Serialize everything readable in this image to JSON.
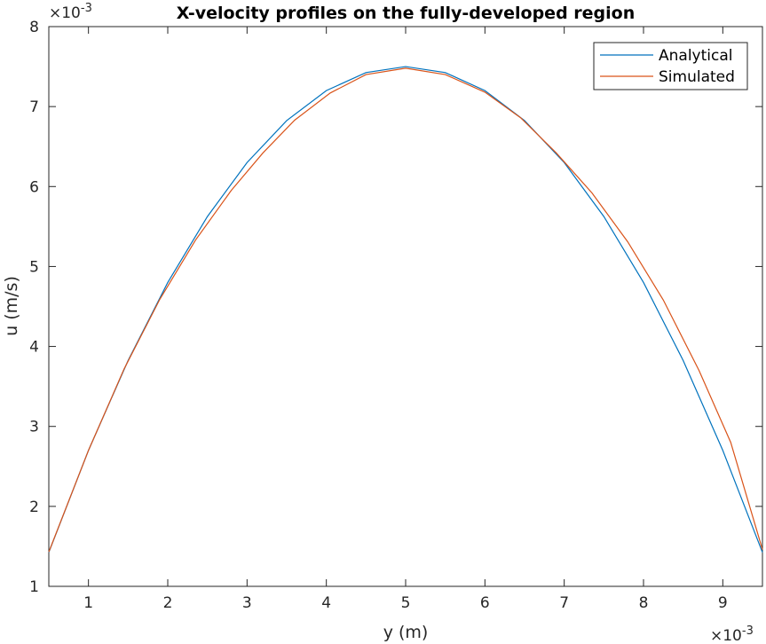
{
  "chart_data": {
    "type": "line",
    "title": "X-velocity profiles on the fully-developed region",
    "xlabel": "y (m)",
    "ylabel": "u (m/s)",
    "x_multiplier_label": "×10",
    "x_multiplier_exp": "-3",
    "y_multiplier_label": "×10",
    "y_multiplier_exp": "-3",
    "xlim": [
      0.5,
      9.5
    ],
    "ylim": [
      1,
      8
    ],
    "xticks": [
      "1",
      "2",
      "3",
      "4",
      "5",
      "6",
      "7",
      "8",
      "9"
    ],
    "yticks": [
      "1",
      "2",
      "3",
      "4",
      "5",
      "6",
      "7",
      "8"
    ],
    "grid": false,
    "legend_position": "top-right",
    "series": [
      {
        "name": "Analytical",
        "color": "#0072BD",
        "x": [
          0.5,
          1.0,
          1.5,
          2.0,
          2.5,
          3.0,
          3.5,
          4.0,
          4.5,
          5.0,
          5.5,
          6.0,
          6.5,
          7.0,
          7.5,
          8.0,
          8.5,
          9.0,
          9.5
        ],
        "y": [
          1.425,
          2.7,
          3.825,
          4.8,
          5.625,
          6.3,
          6.825,
          7.2,
          7.425,
          7.5,
          7.425,
          7.2,
          6.825,
          6.3,
          5.625,
          4.8,
          3.825,
          2.7,
          1.425
        ]
      },
      {
        "name": "Simulated",
        "color": "#D95319",
        "x": [
          0.5,
          1.0,
          1.45,
          1.9,
          2.35,
          2.8,
          3.2,
          3.6,
          4.05,
          4.5,
          5.0,
          5.5,
          6.0,
          6.45,
          6.9,
          7.35,
          7.8,
          8.25,
          8.7,
          9.1,
          9.5
        ],
        "y": [
          1.43,
          2.7,
          3.72,
          4.59,
          5.33,
          5.95,
          6.42,
          6.83,
          7.17,
          7.4,
          7.48,
          7.4,
          7.18,
          6.86,
          6.42,
          5.92,
          5.31,
          4.58,
          3.7,
          2.8,
          1.46
        ]
      }
    ]
  }
}
